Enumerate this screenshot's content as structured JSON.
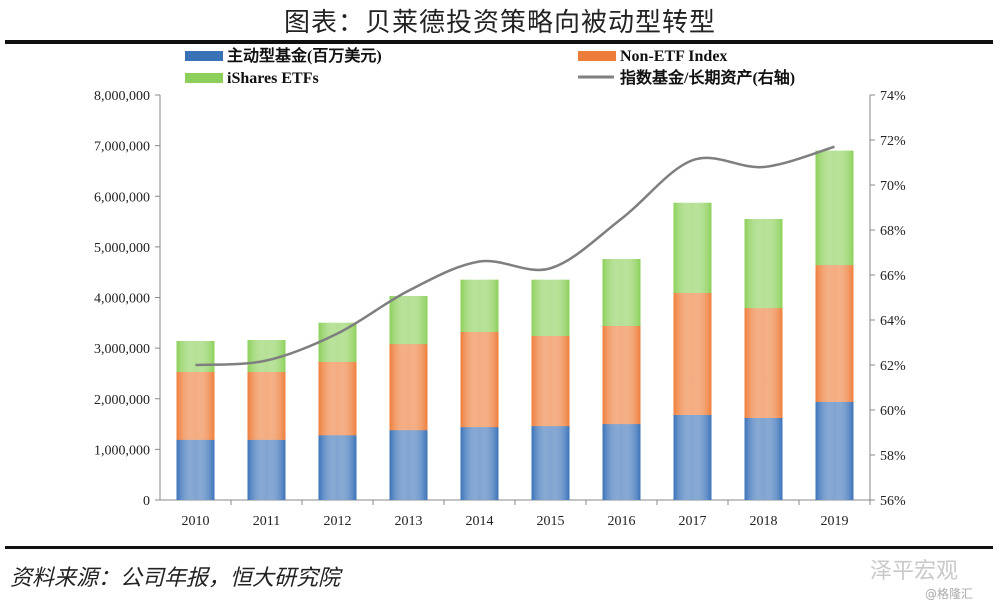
{
  "title": "图表：贝莱德投资策略向被动型转型",
  "source": "资料来源：公司年报，恒大研究院",
  "watermark": "泽平宏观",
  "watermark2": "@格隆汇",
  "chart_data": {
    "type": "bar",
    "stacked": true,
    "categories": [
      "2010",
      "2011",
      "2012",
      "2013",
      "2014",
      "2015",
      "2016",
      "2017",
      "2018",
      "2019"
    ],
    "series": [
      {
        "name": "主动型基金(百万美元)",
        "color": "#3a72b8",
        "values": [
          1190000,
          1190000,
          1280000,
          1380000,
          1440000,
          1460000,
          1500000,
          1680000,
          1620000,
          1940000
        ]
      },
      {
        "name": "Non-ETF Index",
        "color": "#ee7d3a",
        "values": [
          1340000,
          1340000,
          1450000,
          1700000,
          1880000,
          1780000,
          1940000,
          2410000,
          2170000,
          2700000
        ]
      },
      {
        "name": "iShares ETFs",
        "color": "#8ccf5a",
        "values": [
          610000,
          630000,
          770000,
          950000,
          1030000,
          1110000,
          1320000,
          1780000,
          1760000,
          2260000
        ]
      }
    ],
    "line": {
      "name": "指数基金/长期资产(右轴)",
      "color": "#7f7f7f",
      "axis": "right",
      "values": [
        62.0,
        62.2,
        63.4,
        65.3,
        66.6,
        66.3,
        68.5,
        71.1,
        70.8,
        71.7
      ]
    },
    "ylim": [
      0,
      8000000
    ],
    "yticks": [
      "0",
      "1,000,000",
      "2,000,000",
      "3,000,000",
      "4,000,000",
      "5,000,000",
      "6,000,000",
      "7,000,000",
      "8,000,000"
    ],
    "y2lim": [
      56,
      74
    ],
    "y2ticks": [
      "56%",
      "58%",
      "60%",
      "62%",
      "64%",
      "66%",
      "68%",
      "70%",
      "72%",
      "74%"
    ],
    "legend": "top"
  }
}
